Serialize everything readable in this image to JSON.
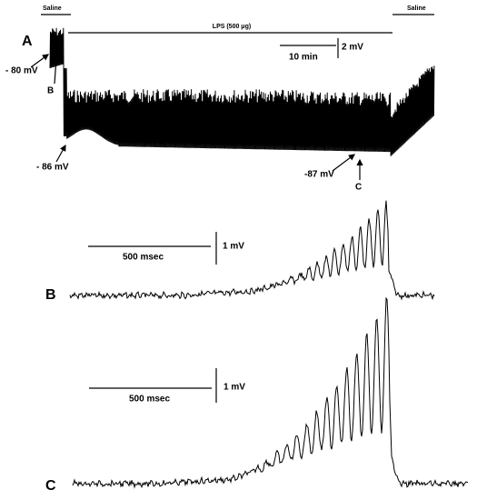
{
  "panel_a": {
    "letter": "A",
    "saline_left": "Saline",
    "treatment": "LPS (500 μg)",
    "saline_right": "Saline",
    "scale_y": "2 mV",
    "scale_x": "10 min",
    "annotations": [
      "- 80 mV",
      "B",
      "- 86 mV",
      "-87 mV",
      "C"
    ]
  },
  "panel_b": {
    "letter": "B",
    "scale_x": "500 msec",
    "scale_y": "1 mV"
  },
  "panel_c": {
    "letter": "C",
    "scale_x": "500 msec",
    "scale_y": "1 mV"
  }
}
